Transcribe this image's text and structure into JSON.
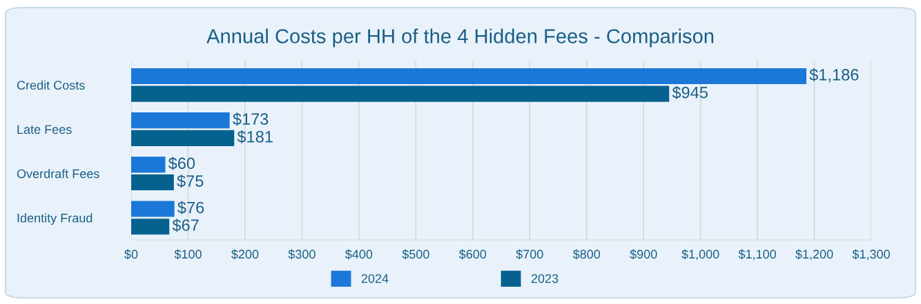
{
  "chart_data": {
    "type": "bar",
    "orientation": "horizontal",
    "title": "Annual Costs per HH of the 4 Hidden Fees - Comparison",
    "categories": [
      "Credit Costs",
      "Late Fees",
      "Overdraft Fees",
      "Identity Fraud"
    ],
    "series": [
      {
        "name": "2024",
        "color": "#1b78d8",
        "values": [
          1186,
          173,
          60,
          76
        ],
        "value_labels": [
          "$1,186",
          "$173",
          "$60",
          "$76"
        ]
      },
      {
        "name": "2023",
        "color": "#06618f",
        "values": [
          945,
          181,
          75,
          67
        ],
        "value_labels": [
          "$945",
          "$181",
          "$75",
          "$67"
        ]
      }
    ],
    "xlim": [
      0,
      1300
    ],
    "xticks": [
      {
        "value": 0,
        "label": "$0"
      },
      {
        "value": 100,
        "label": "$100"
      },
      {
        "value": 200,
        "label": "$200"
      },
      {
        "value": 300,
        "label": "$300"
      },
      {
        "value": 400,
        "label": "$400"
      },
      {
        "value": 500,
        "label": "$500"
      },
      {
        "value": 600,
        "label": "$600"
      },
      {
        "value": 700,
        "label": "$700"
      },
      {
        "value": 800,
        "label": "$800"
      },
      {
        "value": 900,
        "label": "$900"
      },
      {
        "value": 1000,
        "label": "$1,000"
      },
      {
        "value": 1100,
        "label": "$1,100"
      },
      {
        "value": 1200,
        "label": "$1,200"
      },
      {
        "value": 1300,
        "label": "$1,300"
      }
    ],
    "grid": "x",
    "legend": "bottom"
  }
}
